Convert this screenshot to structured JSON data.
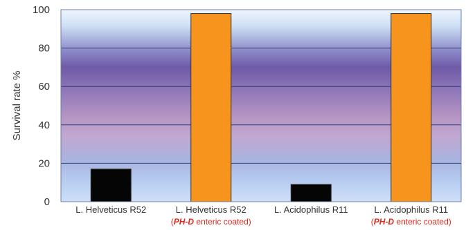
{
  "chart_data": {
    "type": "bar",
    "ylabel": "Survival rate %",
    "ylim": [
      0,
      100
    ],
    "yticks": [
      0,
      20,
      40,
      60,
      80,
      100
    ],
    "grid": true,
    "categories": [
      {
        "label": "L. Helveticus R52",
        "sub_em": "",
        "sub_rest": ""
      },
      {
        "label": "L. Helveticus R52",
        "sub_em": "PH-D",
        "sub_rest": "enteric coated"
      },
      {
        "label": "L. Acidophilus R11",
        "sub_em": "",
        "sub_rest": ""
      },
      {
        "label": "L. Acidophilus R11",
        "sub_em": "PH-D",
        "sub_rest": "enteric coated"
      }
    ],
    "values": [
      17,
      98,
      9,
      98
    ],
    "colors": {
      "uncoated": "#050505",
      "coated": "#f7941d",
      "sub_label": "#e2261b",
      "grid": "#2e3f7a",
      "background_top": "#e9f1fb",
      "background_mid": "#6f5aa8",
      "background_bottom": "#cfe0f7"
    }
  }
}
